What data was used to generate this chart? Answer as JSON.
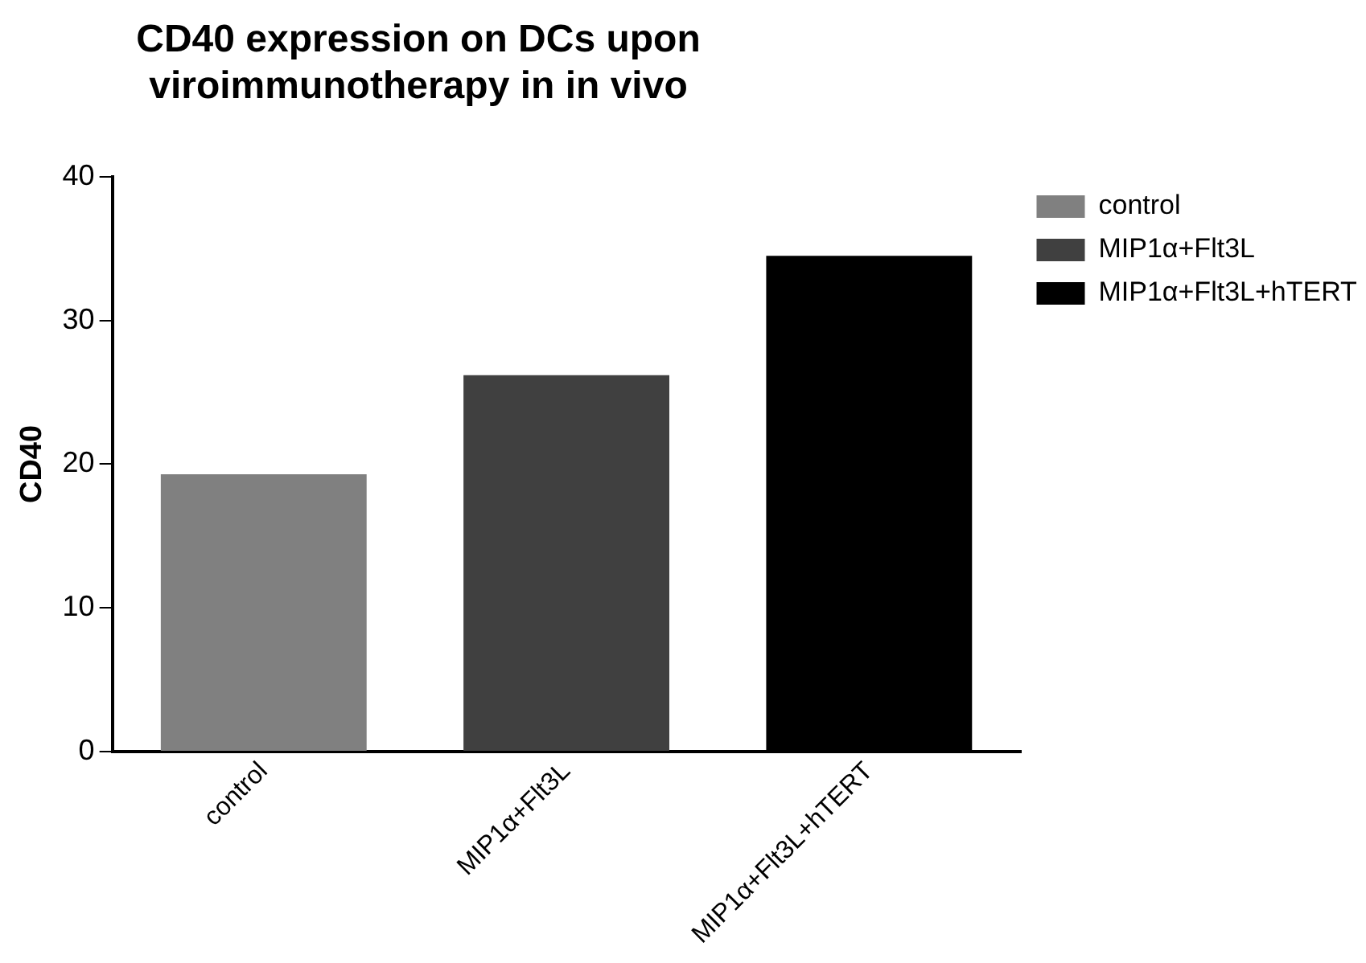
{
  "chart_data": {
    "type": "bar",
    "title": "CD40 expression on DCs upon viroimmunotherapy in in vivo",
    "ylabel": "CD40",
    "categories": [
      "control",
      "MIP1α+Flt3L",
      "MIP1α+Flt3L+hTERT"
    ],
    "series": [
      {
        "name": "control",
        "color": "#808080",
        "values": [
          19.3,
          null,
          null
        ]
      },
      {
        "name": "MIP1α+Flt3L",
        "color": "#404040",
        "values": [
          null,
          26.2,
          null
        ]
      },
      {
        "name": "MIP1α+Flt3L+hTERT",
        "color": "#000000",
        "values": [
          null,
          null,
          34.5
        ]
      }
    ],
    "ylim": [
      0,
      40
    ],
    "yticks": [
      0,
      10,
      20,
      30,
      40
    ],
    "grid": false,
    "legend": "top right"
  }
}
